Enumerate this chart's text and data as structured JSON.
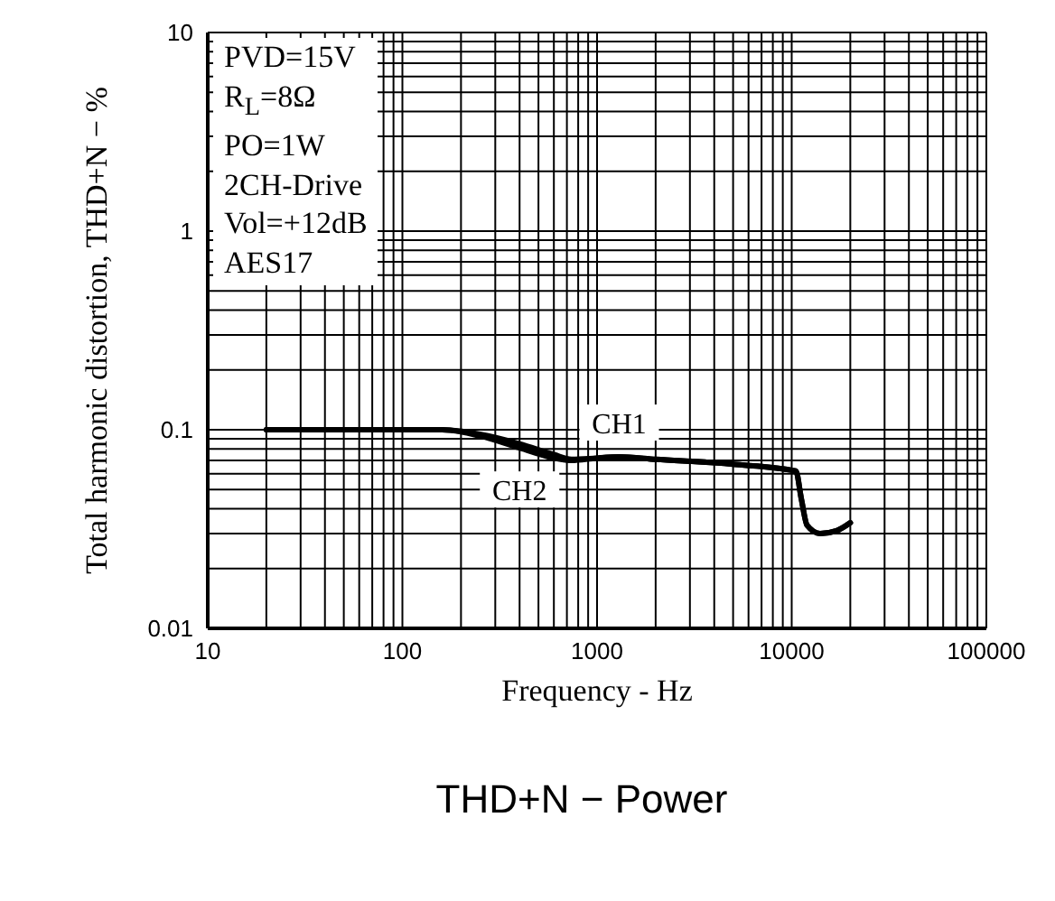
{
  "chart_data": {
    "type": "line",
    "xlabel": "Frequency - Hz",
    "ylabel": "Total harmonic distortion, THD+N  −  %",
    "log": "xy",
    "grid": true,
    "marker": "none",
    "line_style": "solid",
    "xlim": [
      10,
      100000
    ],
    "xticks": [
      10,
      100,
      1000,
      10000,
      100000
    ],
    "ylim": [
      0.01,
      10
    ],
    "yticks": [
      0.01,
      0.1,
      1,
      10
    ],
    "series": [
      {
        "name": "CH1",
        "color": "#000000",
        "x": [
          20,
          50,
          100,
          160,
          250,
          400,
          600,
          740,
          1000,
          1300,
          2000,
          5000,
          10500,
          11200,
          12000,
          14000,
          17000,
          20000
        ],
        "values": [
          0.1,
          0.1,
          0.1,
          0.1,
          0.095,
          0.085,
          0.075,
          0.071,
          0.072,
          0.073,
          0.071,
          0.067,
          0.062,
          0.045,
          0.033,
          0.03,
          0.031,
          0.034
        ]
      },
      {
        "name": "CH2",
        "color": "#000000",
        "x": [
          20,
          50,
          100,
          160,
          250,
          400,
          600,
          740,
          1000,
          1300,
          2000,
          5000,
          10500,
          11200,
          12000,
          14000,
          17000,
          20000
        ],
        "values": [
          0.1,
          0.1,
          0.1,
          0.1,
          0.093,
          0.081,
          0.072,
          0.07,
          0.072,
          0.073,
          0.071,
          0.067,
          0.062,
          0.045,
          0.033,
          0.03,
          0.031,
          0.034
        ]
      }
    ],
    "annotations": [
      "PVD=15V",
      "R$_{L}$=8Ω",
      "PO=1W",
      "2CH-Drive",
      "Vol=+12dB",
      "AES17",
      "THD+N −  Power"
    ]
  }
}
